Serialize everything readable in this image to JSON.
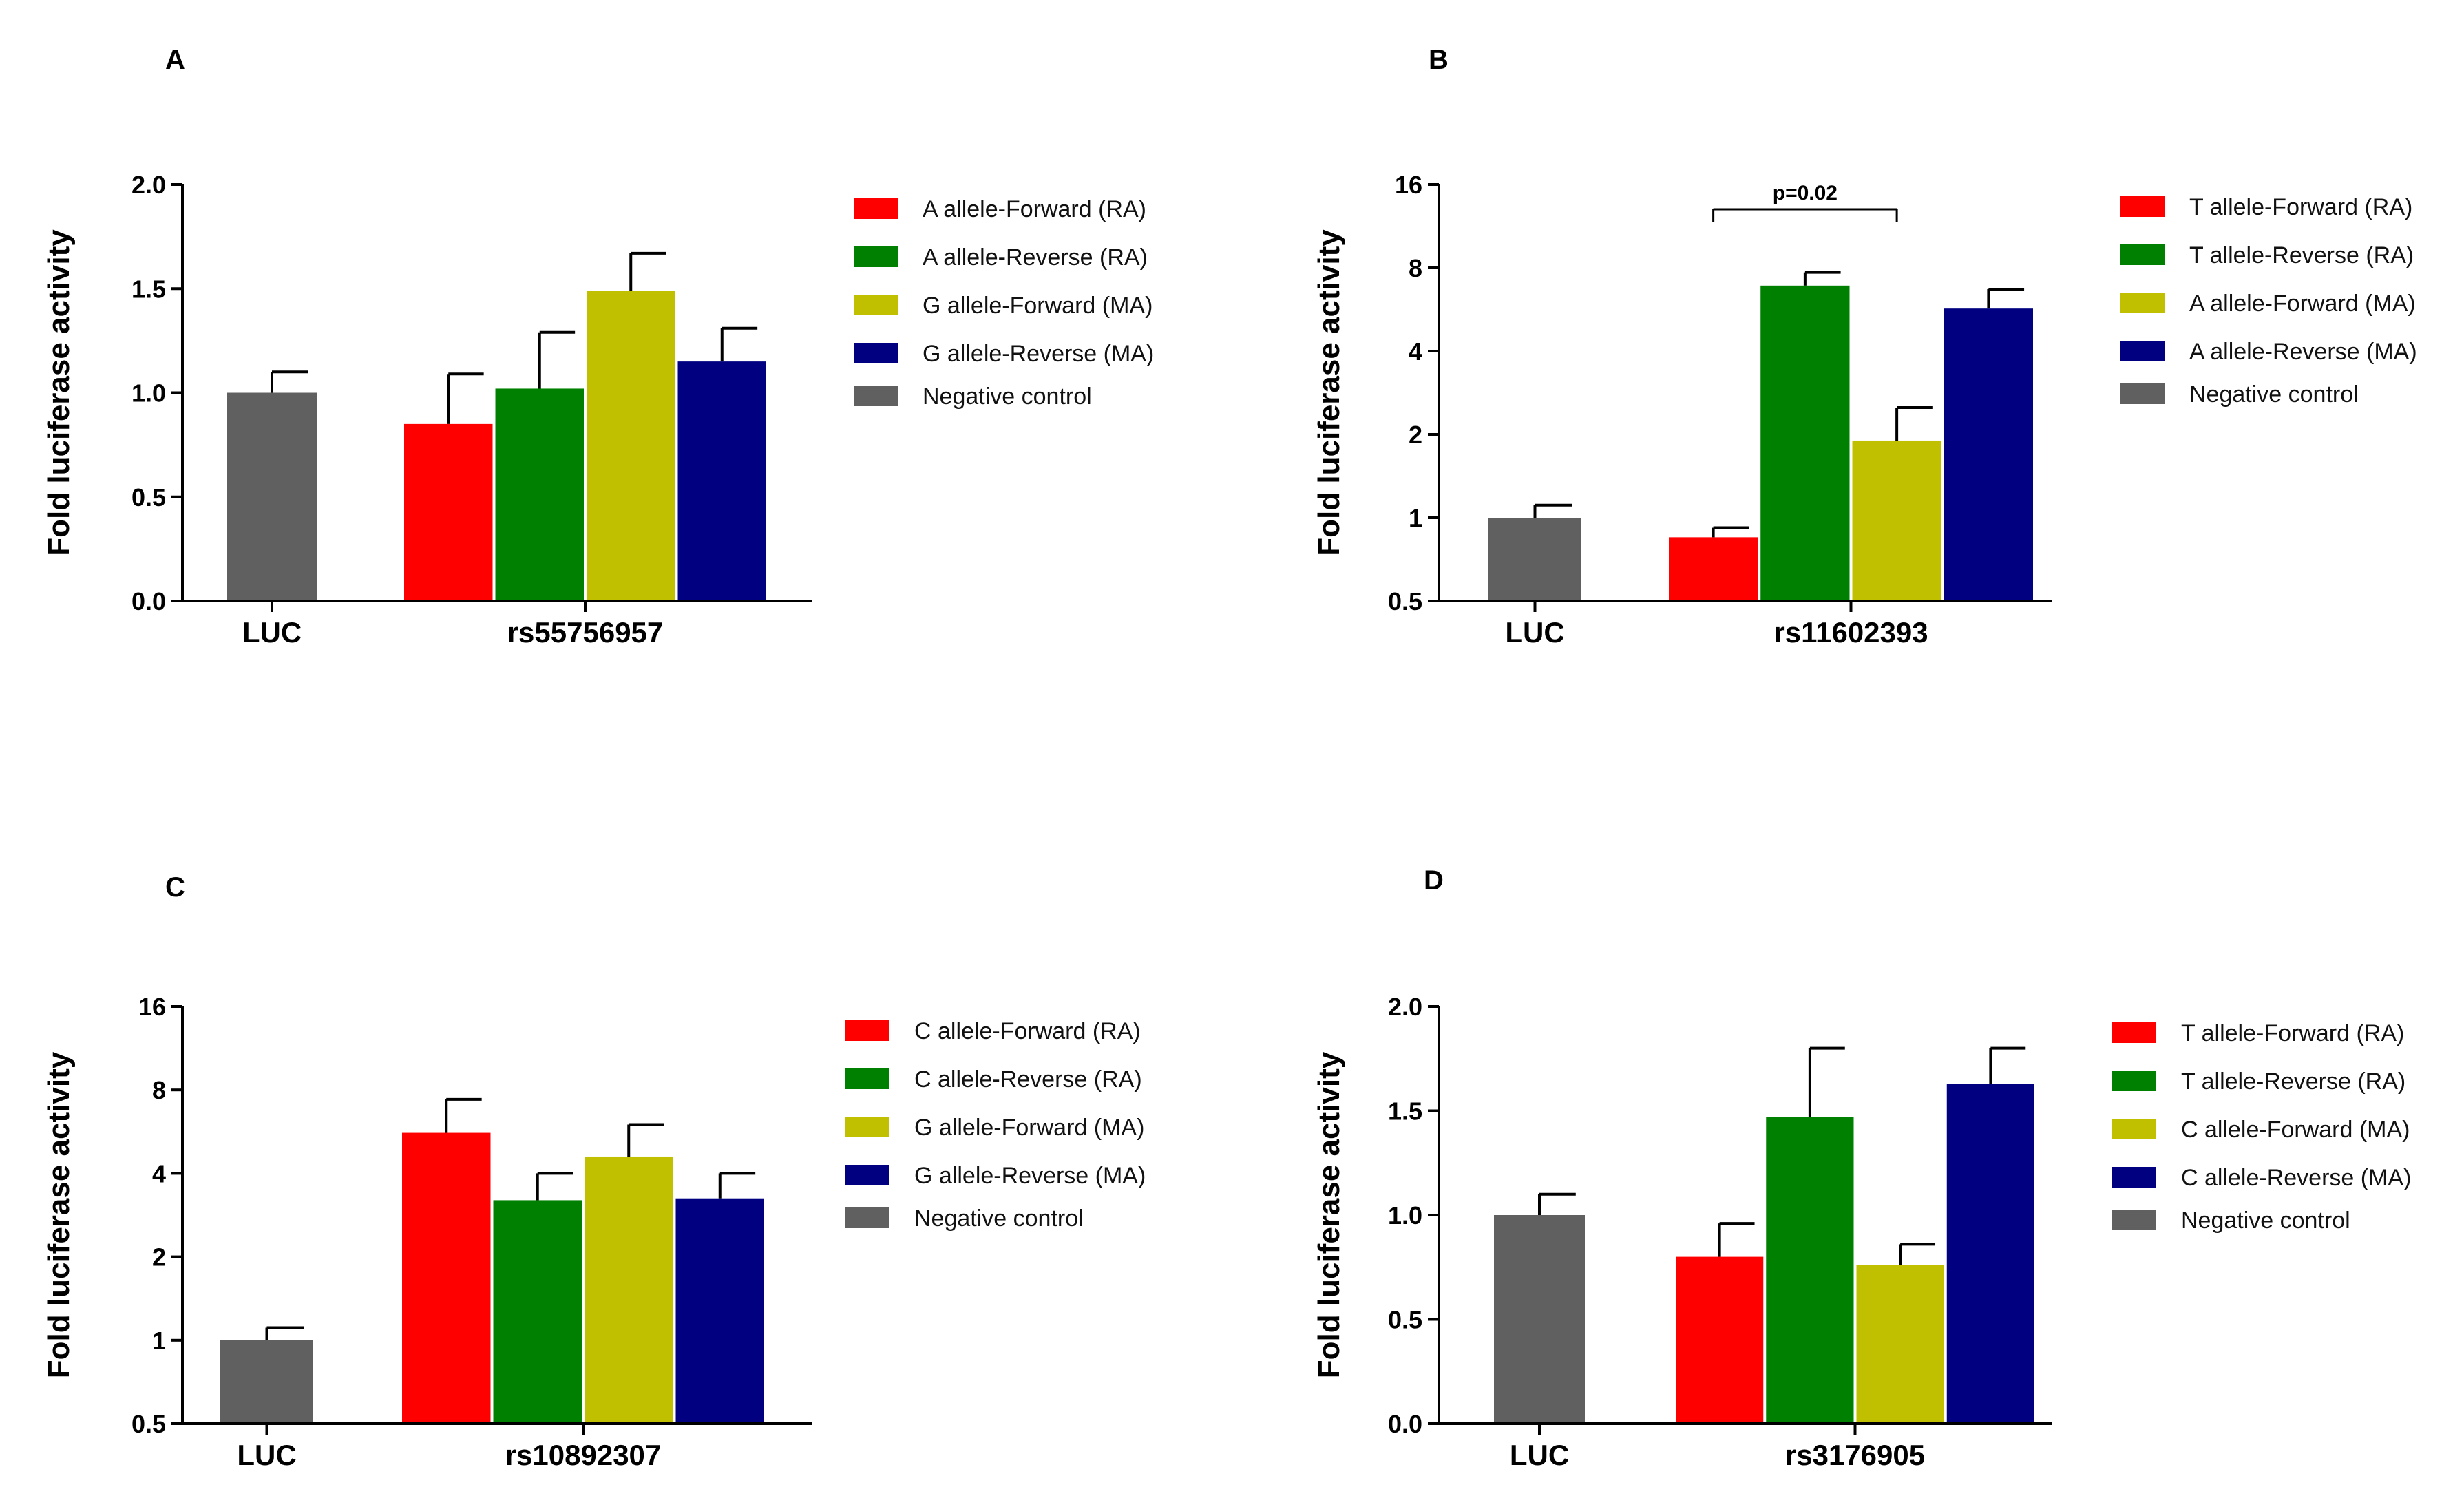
{
  "chart_data": [
    {
      "panel": "A",
      "type": "bar",
      "scale": "linear",
      "ylabel": "Fold luciferase activity",
      "ylim": [
        0,
        2.0
      ],
      "yticks": [
        0.0,
        0.5,
        1.0,
        1.5,
        2.0
      ],
      "ytick_labels": [
        "0.0",
        "0.5",
        "1.0",
        "1.5",
        "2.0"
      ],
      "groups": [
        "LUC",
        "rs55756957"
      ],
      "series": [
        {
          "name": "Negative control",
          "group": "LUC",
          "value": 1.0,
          "error": 0.1,
          "color": "#606060"
        },
        {
          "name": "A allele-Forward (RA)",
          "group": "rs55756957",
          "value": 0.85,
          "error": 0.24,
          "color": "#ff0000"
        },
        {
          "name": "A allele-Reverse (RA)",
          "group": "rs55756957",
          "value": 1.02,
          "error": 0.27,
          "color": "#008000"
        },
        {
          "name": "G allele-Forward (MA)",
          "group": "rs55756957",
          "value": 1.49,
          "error": 0.18,
          "color": "#c0c000"
        },
        {
          "name": "G allele-Reverse (MA)",
          "group": "rs55756957",
          "value": 1.15,
          "error": 0.16,
          "color": "#000080"
        }
      ],
      "legend": [
        "A allele-Forward (RA)",
        "A allele-Reverse (RA)",
        "G allele-Forward (MA)",
        "G allele-Reverse (MA)",
        "Negative control"
      ],
      "annotation": null
    },
    {
      "panel": "B",
      "type": "bar",
      "scale": "log2",
      "ylabel": "Fold luciferase activity",
      "ylim": [
        0.5,
        16
      ],
      "yticks": [
        0.5,
        1,
        2,
        4,
        8,
        16
      ],
      "ytick_labels": [
        "0.5",
        "1",
        "2",
        "4",
        "8",
        "16"
      ],
      "groups": [
        "LUC",
        "rs11602393"
      ],
      "series": [
        {
          "name": "Negative control",
          "group": "LUC",
          "value": 1.0,
          "error": 0.11,
          "color": "#606060"
        },
        {
          "name": "T allele-Forward (RA)",
          "group": "rs11602393",
          "value": 0.85,
          "error": 0.07,
          "color": "#ff0000"
        },
        {
          "name": "T allele-Reverse (RA)",
          "group": "rs11602393",
          "value": 6.9,
          "error": 0.8,
          "color": "#008000"
        },
        {
          "name": "A allele-Forward (MA)",
          "group": "rs11602393",
          "value": 1.9,
          "error": 0.6,
          "color": "#c0c000"
        },
        {
          "name": "A allele-Reverse (MA)",
          "group": "rs11602393",
          "value": 5.7,
          "error": 1.0,
          "color": "#000080"
        }
      ],
      "legend": [
        "T allele-Forward (RA)",
        "T allele-Reverse (RA)",
        "A allele-Forward (MA)",
        "A allele-Reverse (MA)",
        "Negative control"
      ],
      "annotation": {
        "text": "p=0.02",
        "from_bar": 1,
        "to_bar": 3
      }
    },
    {
      "panel": "C",
      "type": "bar",
      "scale": "log2",
      "ylabel": "Fold luciferase activity",
      "ylim": [
        0.5,
        16
      ],
      "yticks": [
        0.5,
        1,
        2,
        4,
        8,
        16
      ],
      "ytick_labels": [
        "0.5",
        "1",
        "2",
        "4",
        "8",
        "16"
      ],
      "groups": [
        "LUC",
        "rs10892307"
      ],
      "series": [
        {
          "name": "Negative control",
          "group": "LUC",
          "value": 1.0,
          "error": 0.11,
          "color": "#606060"
        },
        {
          "name": "C allele-Forward (RA)",
          "group": "rs10892307",
          "value": 5.6,
          "error": 1.8,
          "color": "#ff0000"
        },
        {
          "name": "C allele-Reverse (RA)",
          "group": "rs10892307",
          "value": 3.2,
          "error": 0.8,
          "color": "#008000"
        },
        {
          "name": "G allele-Forward (MA)",
          "group": "rs10892307",
          "value": 4.6,
          "error": 1.4,
          "color": "#c0c000"
        },
        {
          "name": "G allele-Reverse (MA)",
          "group": "rs10892307",
          "value": 3.25,
          "error": 0.75,
          "color": "#000080"
        }
      ],
      "legend": [
        "C allele-Forward (RA)",
        "C allele-Reverse (RA)",
        "G allele-Forward (MA)",
        "G allele-Reverse (MA)",
        "Negative control"
      ],
      "annotation": null
    },
    {
      "panel": "D",
      "type": "bar",
      "scale": "linear",
      "ylabel": "Fold luciferase activity",
      "ylim": [
        0,
        2.0
      ],
      "yticks": [
        0.0,
        0.5,
        1.0,
        1.5,
        2.0
      ],
      "ytick_labels": [
        "0.0",
        "0.5",
        "1.0",
        "1.5",
        "2.0"
      ],
      "groups": [
        "LUC",
        "rs3176905"
      ],
      "series": [
        {
          "name": "Negative control",
          "group": "LUC",
          "value": 1.0,
          "error": 0.1,
          "color": "#606060"
        },
        {
          "name": "T allele-Forward (RA)",
          "group": "rs3176905",
          "value": 0.8,
          "error": 0.16,
          "color": "#ff0000"
        },
        {
          "name": "T allele-Reverse (RA)",
          "group": "rs3176905",
          "value": 1.47,
          "error": 0.33,
          "color": "#008000"
        },
        {
          "name": "C allele-Forward (MA)",
          "group": "rs3176905",
          "value": 0.76,
          "error": 0.1,
          "color": "#c0c000"
        },
        {
          "name": "C allele-Reverse (MA)",
          "group": "rs3176905",
          "value": 1.63,
          "error": 0.17,
          "color": "#000080"
        }
      ],
      "legend": [
        "T allele-Forward (RA)",
        "T allele-Reverse (RA)",
        "C allele-Forward (MA)",
        "C allele-Reverse (MA)",
        "Negative control"
      ],
      "annotation": null
    }
  ]
}
